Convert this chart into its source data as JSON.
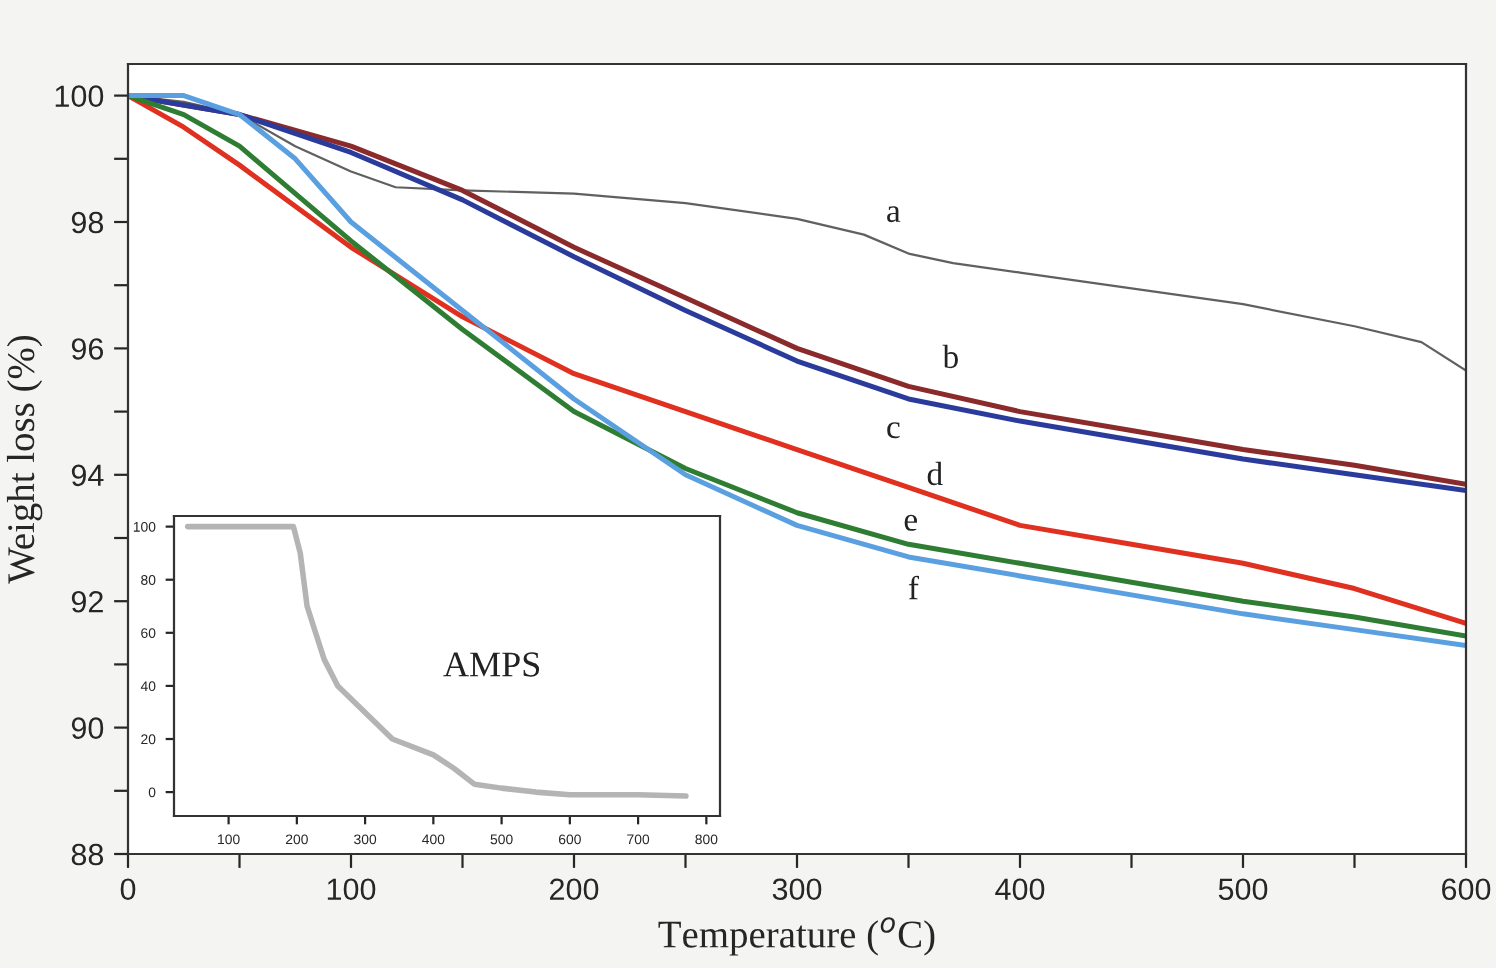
{
  "chart_data": [
    {
      "type": "line",
      "xlabel": "Temperature ($^{o}$C)",
      "ylabel": "Weight loss (%)",
      "x": [
        0,
        25,
        50,
        75,
        100,
        120,
        150,
        200,
        250,
        300,
        330,
        350,
        370,
        400,
        450,
        500,
        550,
        580,
        600
      ],
      "series": [
        {
          "name": "a",
          "color": "#606060",
          "values": [
            100,
            99.9,
            99.7,
            99.2,
            98.8,
            98.55,
            98.5,
            98.45,
            98.3,
            98.05,
            97.8,
            97.5,
            97.35,
            97.2,
            96.95,
            96.7,
            96.35,
            96.1,
            95.65
          ]
        },
        {
          "name": "b",
          "color": "#8b2a2a",
          "x": [
            0,
            50,
            100,
            150,
            200,
            250,
            300,
            350,
            400,
            450,
            500,
            550,
            600
          ],
          "values": [
            100,
            99.7,
            99.2,
            98.5,
            97.6,
            96.8,
            96.0,
            95.4,
            95.0,
            94.7,
            94.4,
            94.15,
            93.85
          ]
        },
        {
          "name": "c",
          "color": "#2b3b9b",
          "x": [
            0,
            50,
            100,
            150,
            200,
            250,
            300,
            350,
            400,
            450,
            500,
            550,
            600
          ],
          "values": [
            100,
            99.7,
            99.1,
            98.35,
            97.45,
            96.6,
            95.8,
            95.2,
            94.85,
            94.55,
            94.25,
            94.0,
            93.75
          ]
        },
        {
          "name": "d",
          "color": "#e03020",
          "x": [
            0,
            25,
            50,
            100,
            150,
            200,
            250,
            300,
            350,
            400,
            450,
            500,
            550,
            600
          ],
          "values": [
            100,
            99.5,
            98.9,
            97.6,
            96.5,
            95.6,
            95.0,
            94.4,
            93.8,
            93.2,
            92.9,
            92.6,
            92.2,
            91.65
          ]
        },
        {
          "name": "e",
          "color": "#2e7d32",
          "x": [
            0,
            25,
            50,
            100,
            150,
            200,
            250,
            300,
            350,
            400,
            450,
            500,
            550,
            600
          ],
          "values": [
            100,
            99.7,
            99.2,
            97.7,
            96.3,
            95.0,
            94.1,
            93.4,
            92.9,
            92.6,
            92.3,
            92.0,
            91.75,
            91.45
          ]
        },
        {
          "name": "f",
          "color": "#5aa0e0",
          "x": [
            0,
            25,
            50,
            75,
            100,
            150,
            200,
            250,
            300,
            350,
            400,
            450,
            500,
            550,
            600
          ],
          "values": [
            100,
            100.0,
            99.7,
            99.0,
            98.0,
            96.6,
            95.2,
            94.0,
            93.2,
            92.7,
            92.4,
            92.1,
            91.8,
            91.55,
            91.3
          ]
        }
      ],
      "xlim": [
        0,
        600
      ],
      "ylim": [
        88,
        100.5
      ],
      "xticks": [
        0,
        {
          "value": 50,
          "label": null
        },
        100,
        {
          "value": 150,
          "label": null
        },
        200,
        {
          "value": 250,
          "label": null
        },
        300,
        {
          "value": 350,
          "label": null
        },
        400,
        {
          "value": 450,
          "label": null
        },
        500,
        {
          "value": 550,
          "label": null
        },
        600
      ],
      "yticks": [
        88,
        {
          "value": 89,
          "label": null
        },
        90,
        {
          "value": 91,
          "label": null
        },
        92,
        {
          "value": 93,
          "label": null
        },
        94,
        {
          "value": 95,
          "label": null
        },
        96,
        {
          "value": 97,
          "label": null
        },
        98,
        {
          "value": 99,
          "label": null
        },
        100
      ],
      "legend": false,
      "grid": false
    },
    {
      "type": "line",
      "x": [
        40,
        100,
        195,
        205,
        215,
        240,
        260,
        300,
        340,
        400,
        430,
        460,
        500,
        550,
        600,
        700,
        770
      ],
      "series": [
        {
          "name": "AMPS",
          "color": "#b4b4b4",
          "values": [
            100,
            100,
            100,
            90,
            70,
            50,
            40,
            30,
            20,
            14,
            9,
            3,
            1.5,
            0,
            -1,
            -1,
            -1.5
          ]
        }
      ],
      "xlim": [
        20,
        820
      ],
      "ylim": [
        -9,
        104
      ],
      "xticks": [
        100,
        200,
        300,
        400,
        500,
        600,
        700,
        800
      ],
      "yticks": [
        0,
        20,
        40,
        60,
        80,
        100
      ],
      "legend": false,
      "grid": false
    }
  ]
}
